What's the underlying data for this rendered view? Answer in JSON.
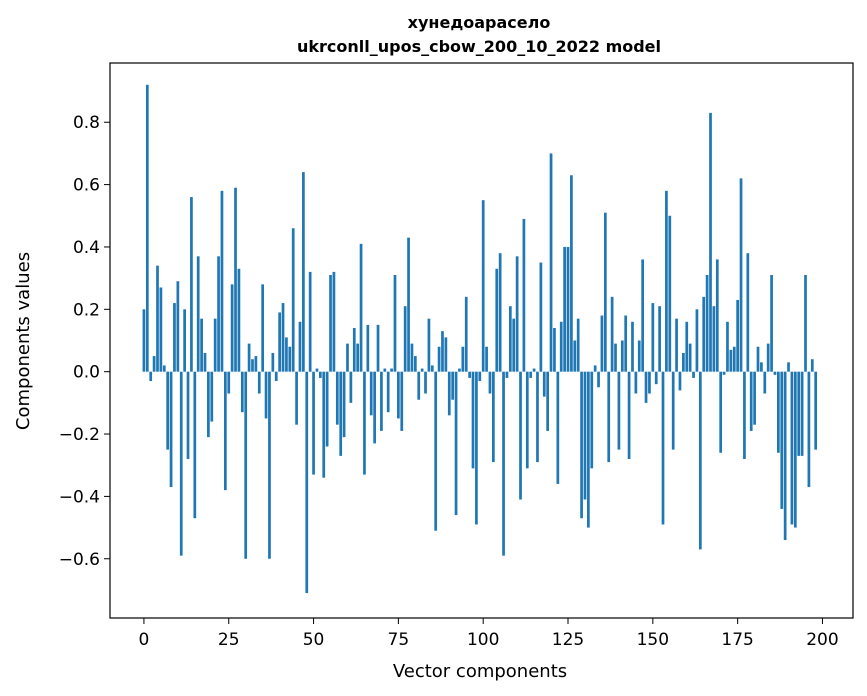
{
  "chart_data": {
    "type": "bar",
    "title": "хунедоарасело",
    "subtitle": "ukrconll_upos_cbow_200_10_2022 model",
    "xlabel": "Vector components",
    "ylabel": "Components values",
    "xlim": [
      -10,
      209
    ],
    "ylim": [
      -0.79,
      0.99
    ],
    "x_ticks": [
      0,
      25,
      50,
      75,
      100,
      125,
      150,
      175,
      200
    ],
    "x_tick_labels": [
      "0",
      "25",
      "50",
      "75",
      "100",
      "125",
      "150",
      "175",
      "200"
    ],
    "y_ticks": [
      -0.6,
      -0.4,
      -0.2,
      0.0,
      0.2,
      0.4,
      0.6,
      0.8
    ],
    "y_tick_labels": [
      "−0.6",
      "−0.4",
      "−0.2",
      "0.0",
      "0.2",
      "0.4",
      "0.6",
      "0.8"
    ],
    "bar_color": "#1f77b4",
    "grid": false,
    "values": [
      0.2,
      0.92,
      -0.03,
      0.05,
      0.34,
      0.27,
      0.02,
      -0.25,
      -0.37,
      0.22,
      0.29,
      -0.59,
      0.2,
      -0.28,
      0.56,
      -0.47,
      0.37,
      0.17,
      0.06,
      -0.21,
      -0.16,
      0.17,
      0.37,
      0.58,
      -0.38,
      -0.07,
      0.28,
      0.59,
      0.33,
      -0.13,
      -0.6,
      0.09,
      0.04,
      0.05,
      -0.07,
      0.28,
      -0.15,
      -0.6,
      0.06,
      -0.03,
      0.19,
      0.22,
      0.11,
      0.08,
      0.46,
      -0.17,
      0.16,
      0.64,
      -0.71,
      0.32,
      -0.33,
      0.01,
      -0.02,
      -0.34,
      -0.24,
      0.31,
      0.32,
      -0.17,
      -0.27,
      -0.21,
      0.09,
      -0.1,
      0.14,
      0.09,
      0.41,
      -0.33,
      0.15,
      -0.14,
      -0.23,
      0.15,
      -0.19,
      0.01,
      -0.13,
      0.01,
      0.31,
      -0.15,
      -0.19,
      0.21,
      0.43,
      0.09,
      0.05,
      -0.09,
      0.01,
      -0.07,
      0.17,
      0.02,
      -0.51,
      0.08,
      0.13,
      0.11,
      -0.14,
      -0.09,
      -0.46,
      0.01,
      0.08,
      0.24,
      -0.02,
      -0.31,
      -0.49,
      -0.03,
      0.55,
      0.08,
      -0.07,
      -0.29,
      0.33,
      0.38,
      -0.59,
      -0.02,
      0.21,
      0.17,
      0.37,
      -0.41,
      0.49,
      -0.31,
      -0.02,
      0.01,
      -0.29,
      0.35,
      -0.08,
      -0.19,
      0.7,
      0.14,
      -0.36,
      0.16,
      0.4,
      0.4,
      0.63,
      0.1,
      0.17,
      -0.47,
      -0.41,
      -0.5,
      -0.31,
      0.02,
      -0.05,
      0.18,
      0.51,
      -0.29,
      0.24,
      0.09,
      -0.25,
      0.1,
      0.18,
      -0.28,
      0.16,
      -0.07,
      0.1,
      0.36,
      -0.1,
      -0.07,
      0.22,
      -0.04,
      0.21,
      -0.49,
      0.58,
      0.5,
      -0.25,
      0.17,
      -0.06,
      0.06,
      0.16,
      0.09,
      -0.02,
      0.2,
      -0.57,
      0.24,
      0.31,
      0.83,
      0.21,
      0.36,
      -0.26,
      -0.01,
      0.16,
      0.07,
      0.08,
      0.23,
      0.62,
      -0.28,
      0.38,
      -0.19,
      -0.17,
      0.08,
      0.03,
      -0.07,
      0.09,
      0.31,
      -0.01,
      -0.26,
      -0.44,
      -0.54,
      0.03,
      -0.49,
      -0.5,
      -0.27,
      -0.27,
      0.31,
      -0.37,
      0.04,
      -0.25
    ]
  }
}
